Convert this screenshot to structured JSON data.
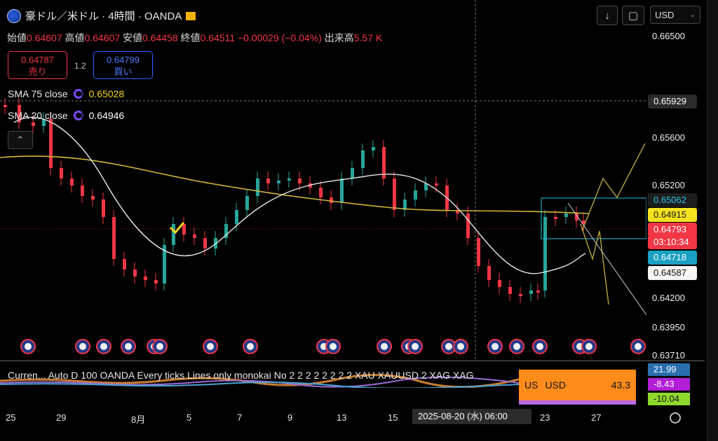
{
  "header": {
    "symbol_title": "豪ドル／米ドル · 4時間 · OANDA",
    "ohlc": {
      "open_label": "始値",
      "open": "0.64607",
      "high_label": "高値",
      "high": "0.64607",
      "low_label": "安値",
      "low": "0.64458",
      "close_label": "終値",
      "close": "0.64511",
      "change": "−0.00029 (−0.04%)",
      "volume_label": "出来高",
      "volume": "5.57 K"
    }
  },
  "toolbar": {
    "down_icon": "arrow-down-icon",
    "fullscreen_icon": "fullscreen-icon",
    "currency": "USD"
  },
  "trade": {
    "sell_price": "0.64787",
    "sell_label": "売り",
    "spread": "1.2",
    "buy_price": "0.64799",
    "buy_label": "買い"
  },
  "indicators": [
    {
      "name": "SMA 75 close",
      "value": "0.65028",
      "color": "#f5d223"
    },
    {
      "name": "SMA 20 close",
      "value": "0.64946",
      "color": "#ffffff"
    }
  ],
  "price_axis": {
    "labels": [
      "0.66500",
      "0.65600",
      "0.65200",
      "0.64200",
      "0.63950",
      "0.63710"
    ],
    "crosshair": "0.65929",
    "tags": [
      {
        "value": "0.65062",
        "bg": "#1d1d1d",
        "fg": "#29c5e6"
      },
      {
        "value": "0.64915",
        "bg": "#f5e31f",
        "fg": "#111111"
      },
      {
        "value": "0.64793",
        "bg": "#f23645",
        "fg": "#ffffff"
      },
      {
        "value": "03:10:34",
        "bg": "#f23645",
        "fg": "#ffffff"
      },
      {
        "value": "0.64718",
        "bg": "#1aa1c4",
        "fg": "#ffffff"
      },
      {
        "value": "0.64587",
        "bg": "#f5f5f5",
        "fg": "#111111"
      }
    ]
  },
  "oscillator": {
    "title": "Curren...  Auto D 100 OANDA Every ticks Lines only monokai No 2 2 2 2 2 2 2 2 XAU XAUUSD 2 XAG XAG",
    "box_left": "US",
    "box_mid": "USD",
    "box_value": "43.3",
    "tags": [
      {
        "value": "21.99",
        "bg": "#2a6fb0",
        "fg": "#ffffff"
      },
      {
        "value": "-8.43",
        "bg": "#b21fd6",
        "fg": "#ffffff"
      },
      {
        "value": "-10.04",
        "bg": "#8fd82d",
        "fg": "#111111"
      }
    ]
  },
  "time_axis": {
    "labels": [
      "25",
      "29",
      "8月",
      "5",
      "7",
      "9",
      "13",
      "15",
      "23",
      "27"
    ],
    "crosshair": "2025-08-20 (水)   06:00"
  },
  "colors": {
    "up": "#26a69a",
    "down": "#f23645",
    "sma75": "#d4b83a",
    "sma20": "#e8e8e8",
    "bg": "#000000"
  }
}
